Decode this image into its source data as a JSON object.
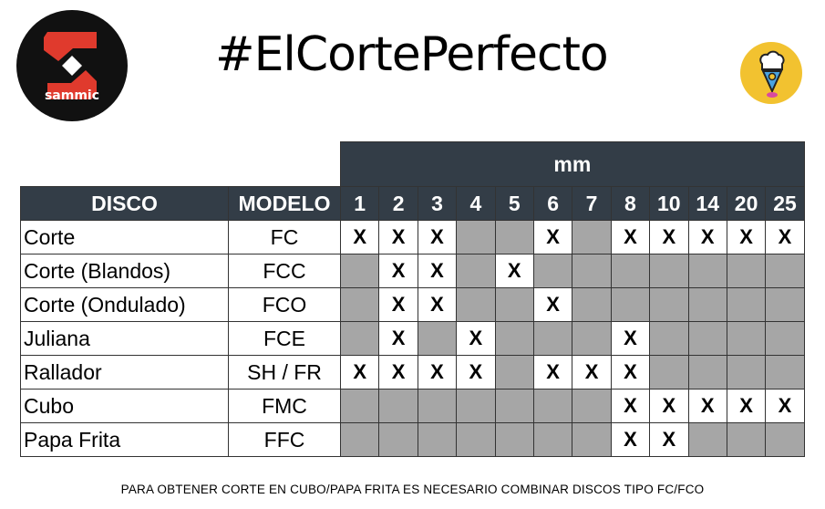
{
  "logo": {
    "text": "sammic",
    "colors": {
      "background": "#111111",
      "mark": "#e03a2d"
    }
  },
  "title": "#ElCortePerfecto",
  "badge_icon": "chef-hat-location-pin-icon",
  "table": {
    "unit_header": "mm",
    "headers": {
      "disco": "DISCO",
      "modelo": "MODELO"
    },
    "sizes": [
      "1",
      "2",
      "3",
      "4",
      "5",
      "6",
      "7",
      "8",
      "10",
      "14",
      "20",
      "25"
    ],
    "mark": "X",
    "colors": {
      "header": "#333d47",
      "unavailable": "#a6a6a6",
      "available": "#ffffff"
    },
    "rows": [
      {
        "disco": "Corte",
        "modelo": "FC",
        "marks": [
          1,
          1,
          1,
          0,
          0,
          1,
          0,
          1,
          1,
          1,
          1,
          1
        ]
      },
      {
        "disco": "Corte (Blandos)",
        "modelo": "FCC",
        "marks": [
          0,
          1,
          1,
          0,
          1,
          0,
          0,
          0,
          0,
          0,
          0,
          0
        ]
      },
      {
        "disco": "Corte (Ondulado)",
        "modelo": "FCO",
        "marks": [
          0,
          1,
          1,
          0,
          0,
          1,
          0,
          0,
          0,
          0,
          0,
          0
        ]
      },
      {
        "disco": "Juliana",
        "modelo": "FCE",
        "marks": [
          0,
          1,
          0,
          1,
          0,
          0,
          0,
          1,
          0,
          0,
          0,
          0
        ]
      },
      {
        "disco": "Rallador",
        "modelo": "SH / FR",
        "marks": [
          1,
          1,
          1,
          1,
          0,
          1,
          1,
          1,
          0,
          0,
          0,
          0
        ]
      },
      {
        "disco": "Cubo",
        "modelo": "FMC",
        "marks": [
          0,
          0,
          0,
          0,
          0,
          0,
          0,
          1,
          1,
          1,
          1,
          1
        ]
      },
      {
        "disco": "Papa Frita",
        "modelo": "FFC",
        "marks": [
          0,
          0,
          0,
          0,
          0,
          0,
          0,
          1,
          1,
          0,
          0,
          0
        ]
      }
    ]
  },
  "footer": "PARA OBTENER CORTE EN CUBO/PAPA FRITA ES NECESARIO COMBINAR DISCOS TIPO FC/FCO"
}
